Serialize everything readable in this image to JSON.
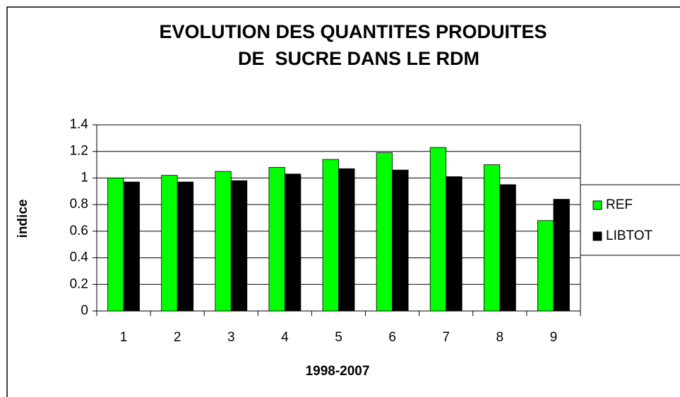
{
  "chart_data": {
    "type": "bar",
    "title": [
      "EVOLUTION DES QUANTITES PRODUITES",
      "DE  SUCRE DANS LE RDM"
    ],
    "x_label": "1998-2007",
    "y_label": "indice",
    "categories": [
      "1",
      "2",
      "3",
      "4",
      "5",
      "6",
      "7",
      "8",
      "9"
    ],
    "series": [
      {
        "name": "REF",
        "color": "#00ff00",
        "values": [
          1.0,
          1.02,
          1.05,
          1.08,
          1.14,
          1.19,
          1.23,
          1.1,
          0.68
        ]
      },
      {
        "name": "LIBTOT",
        "color": "#000000",
        "values": [
          0.97,
          0.97,
          0.98,
          1.03,
          1.07,
          1.06,
          1.01,
          0.95,
          0.84
        ]
      }
    ],
    "ylim": [
      0,
      1.4
    ],
    "yticks": [
      0,
      0.2,
      0.4,
      0.6,
      0.8,
      1,
      1.2,
      1.4
    ],
    "grid": true,
    "legend": "right"
  }
}
